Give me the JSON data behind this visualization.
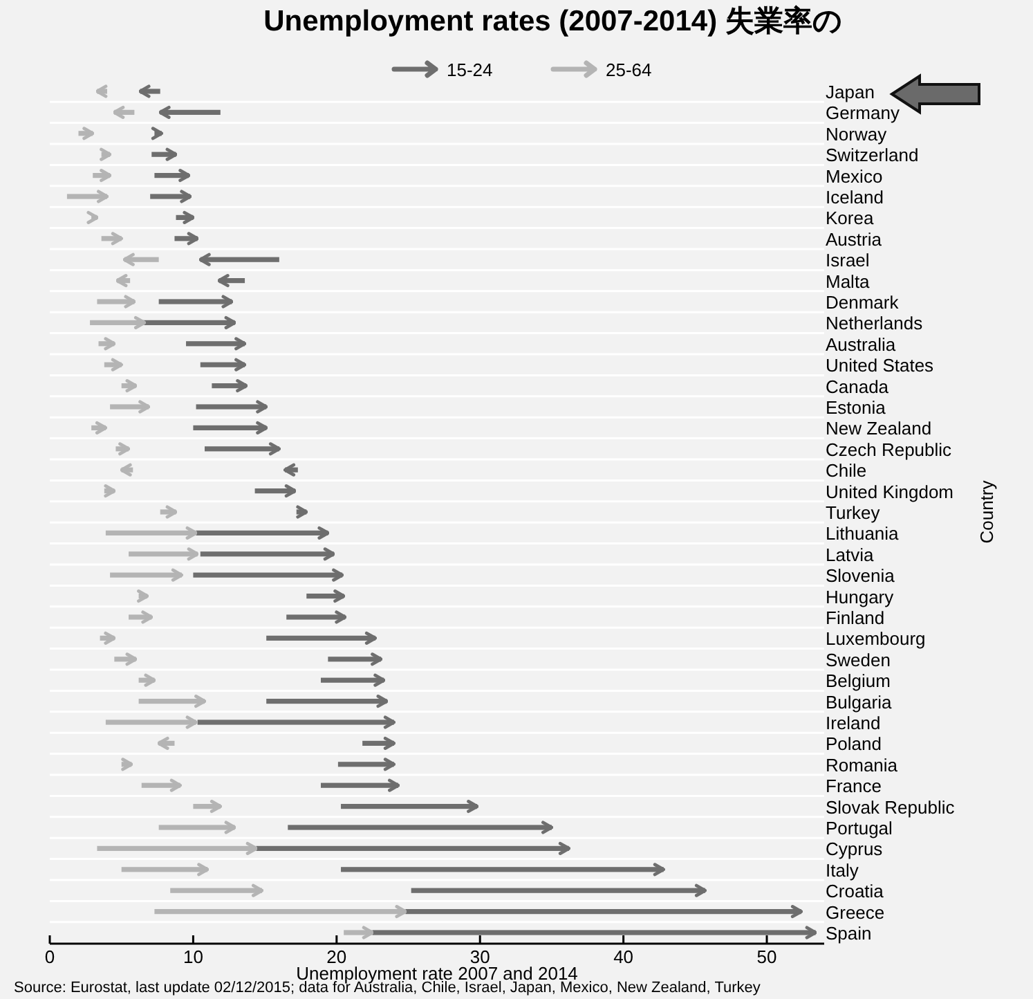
{
  "chart_data": {
    "type": "bar",
    "orientation": "horizontal",
    "title": "Unemployment rates (2007-2014) 失業率の",
    "xlabel": "Unemployment rate 2007 and 2014",
    "ylabel": "Country",
    "categories": [
      "Japan",
      "Germany",
      "Norway",
      "Switzerland",
      "Mexico",
      "Iceland",
      "Korea",
      "Austria",
      "Israel",
      "Malta",
      "Denmark",
      "Netherlands",
      "Australia",
      "United States",
      "Canada",
      "Estonia",
      "New Zealand",
      "Czech Republic",
      "Chile",
      "United Kingdom",
      "Turkey",
      "Lithuania",
      "Latvia",
      "Slovenia",
      "Hungary",
      "Finland",
      "Luxembourg",
      "Sweden",
      "Belgium",
      "Bulgaria",
      "Ireland",
      "Poland",
      "Romania",
      "France",
      "Slovak Republic",
      "Portugal",
      "Cyprus",
      "Italy",
      "Croatia",
      "Greece",
      "Spain"
    ],
    "series": [
      {
        "name": "15-24",
        "color": "#6e6e6e",
        "base": [
          7.7,
          11.9,
          7.3,
          7.1,
          7.3,
          7.0,
          8.8,
          8.7,
          16.0,
          13.6,
          7.6,
          6.4,
          9.5,
          10.5,
          11.3,
          10.2,
          10.0,
          10.8,
          17.3,
          14.3,
          17.2,
          10.2,
          10.5,
          10.0,
          17.9,
          16.5,
          15.1,
          19.4,
          18.9,
          15.1,
          10.3,
          21.8,
          20.1,
          18.9,
          20.3,
          16.6,
          14.4,
          20.3,
          25.2,
          24.8,
          22.5
        ],
        "values": [
          -1.4,
          -4.2,
          0.5,
          1.7,
          2.4,
          2.8,
          1.2,
          1.6,
          -5.5,
          -1.8,
          5.1,
          6.5,
          4.1,
          3.1,
          2.4,
          4.9,
          5.1,
          5.2,
          -0.9,
          2.8,
          0.7,
          9.2,
          9.3,
          10.4,
          2.6,
          4.1,
          7.6,
          3.7,
          4.4,
          8.4,
          13.7,
          2.2,
          3.9,
          5.4,
          9.5,
          18.4,
          21.8,
          22.5,
          20.5,
          27.6,
          30.9
        ]
      },
      {
        "name": "25-64",
        "color": "#b4b4b4",
        "base": [
          4.0,
          5.9,
          2.0,
          3.6,
          3.0,
          1.2,
          2.9,
          3.6,
          7.6,
          5.6,
          3.3,
          2.8,
          3.4,
          3.8,
          5.0,
          4.2,
          2.9,
          4.6,
          5.8,
          3.8,
          7.7,
          3.9,
          5.5,
          4.2,
          6.2,
          5.5,
          3.5,
          4.5,
          6.2,
          6.2,
          3.9,
          8.7,
          5.0,
          6.4,
          10.0,
          7.6,
          3.3,
          5.0,
          8.4,
          7.3,
          20.5
        ],
        "values": [
          -0.7,
          -1.4,
          1.0,
          0.6,
          1.2,
          2.8,
          0.4,
          1.4,
          -2.4,
          -0.9,
          2.6,
          3.8,
          1.1,
          1.2,
          1.0,
          2.7,
          1.0,
          0.9,
          -0.8,
          0.7,
          1.1,
          6.3,
          4.8,
          5.0,
          0.6,
          1.6,
          1.0,
          1.5,
          1.1,
          4.6,
          6.3,
          -1.1,
          0.7,
          2.7,
          1.9,
          5.3,
          11.1,
          6.0,
          6.4,
          17.5,
          2.0
        ]
      }
    ],
    "xlim": [
      0,
      54
    ],
    "xticks": [
      0,
      10,
      20,
      30,
      40,
      50
    ],
    "grid": "y",
    "legend": "top",
    "annotations": [
      "Source: Eurostat, last update 02/12/2015; data for Australia, Chile, Israel, Japan, Mexico, New Zealand, Turkey"
    ]
  }
}
